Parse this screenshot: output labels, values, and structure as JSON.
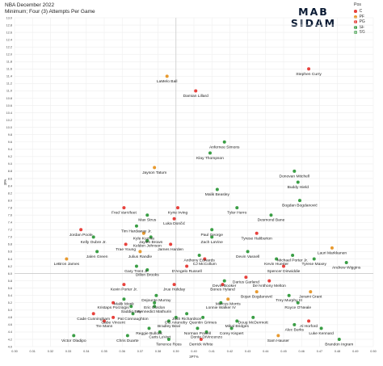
{
  "header": {
    "line1": "NBA December 2022",
    "line2": "Minimum; Four (3) Attempts Per Game"
  },
  "logo": {
    "line1": "MAB",
    "line2": "SIDAM"
  },
  "chart_data": {
    "type": "scatter",
    "xlabel": "3PT%",
    "ylabel": "3PA",
    "xlim": [
      0.3,
      0.5
    ],
    "ylim": [
      4.0,
      13.0
    ],
    "xticks": [
      "0.30",
      "0.31",
      "0.32",
      "0.33",
      "0.34",
      "0.35",
      "0.36",
      "0.37",
      "0.38",
      "0.39",
      "0.40",
      "0.41",
      "0.42",
      "0.43",
      "0.44",
      "0.45",
      "0.46",
      "0.47",
      "0.48",
      "0.49",
      "0.50"
    ],
    "yticks": [
      "4.0",
      "4.2",
      "4.4",
      "4.6",
      "4.8",
      "5.0",
      "5.2",
      "5.4",
      "5.6",
      "5.8",
      "6.0",
      "6.2",
      "6.4",
      "6.6",
      "6.8",
      "7.0",
      "7.2",
      "7.4",
      "7.6",
      "7.8",
      "8.0",
      "8.2",
      "8.4",
      "8.6",
      "8.8",
      "9.0",
      "9.2",
      "9.4",
      "9.6",
      "9.8",
      "10.0",
      "10.2",
      "10.4",
      "10.6",
      "10.8",
      "11.0",
      "11.2",
      "11.4",
      "11.6",
      "11.8",
      "12.0",
      "12.2",
      "12.4",
      "12.6",
      "12.8",
      "13.0"
    ],
    "reference_lines": {
      "x": 0.39,
      "y": 6.0
    },
    "legend": {
      "title": "Pos",
      "placement": "top-right",
      "entries": [
        {
          "label": "C",
          "color": "#e8413c"
        },
        {
          "label": "PF",
          "color": "#e89a2f"
        },
        {
          "label": "PG",
          "color": "#e8413c"
        },
        {
          "label": "SF",
          "color": "#3a9e45"
        },
        {
          "label": "SG",
          "color": "#3a9e45"
        }
      ]
    },
    "colors": {
      "red": "#e8413c",
      "orange": "#e89a2f",
      "green": "#3a9e45"
    },
    "points": [
      {
        "name": "Stephen Curry",
        "x": 0.464,
        "y": 11.6,
        "c": "red"
      },
      {
        "name": "LaMelo Ball",
        "x": 0.385,
        "y": 11.4,
        "c": "orange"
      },
      {
        "name": "Damian Lillard",
        "x": 0.401,
        "y": 11.0,
        "c": "red"
      },
      {
        "name": "Anfernee Simons",
        "x": 0.417,
        "y": 9.6,
        "c": "green"
      },
      {
        "name": "Klay Thompson",
        "x": 0.409,
        "y": 9.3,
        "c": "green"
      },
      {
        "name": "Jayson Tatum",
        "x": 0.378,
        "y": 8.9,
        "c": "orange"
      },
      {
        "name": "Donovan Mitchell",
        "x": 0.456,
        "y": 8.8,
        "c": "green"
      },
      {
        "name": "Buddy Hield",
        "x": 0.458,
        "y": 8.5,
        "c": "green"
      },
      {
        "name": "Malik Beasley",
        "x": 0.413,
        "y": 8.3,
        "c": "green"
      },
      {
        "name": "Bogdan Bogdanović",
        "x": 0.459,
        "y": 8.0,
        "c": "green"
      },
      {
        "name": "Fred VanVleet",
        "x": 0.361,
        "y": 7.8,
        "c": "red"
      },
      {
        "name": "Kyrie Irving",
        "x": 0.391,
        "y": 7.8,
        "c": "red"
      },
      {
        "name": "Tyler Herro",
        "x": 0.424,
        "y": 7.8,
        "c": "green"
      },
      {
        "name": "Desmond Bane",
        "x": 0.443,
        "y": 7.6,
        "c": "green"
      },
      {
        "name": "Max Strus",
        "x": 0.374,
        "y": 7.6,
        "c": "green"
      },
      {
        "name": "Luka Dončić",
        "x": 0.389,
        "y": 7.5,
        "c": "red"
      },
      {
        "name": "Tim Hardaway Jr.",
        "x": 0.368,
        "y": 7.3,
        "c": "green"
      },
      {
        "name": "Jordan Poole",
        "x": 0.337,
        "y": 7.2,
        "c": "red"
      },
      {
        "name": "Paul George",
        "x": 0.41,
        "y": 7.2,
        "c": "green"
      },
      {
        "name": "Tyrese Haliburton",
        "x": 0.435,
        "y": 7.1,
        "c": "red"
      },
      {
        "name": "Kyle Kuzma",
        "x": 0.372,
        "y": 7.1,
        "c": "orange"
      },
      {
        "name": "Kelly Oubre Jr.",
        "x": 0.344,
        "y": 7.0,
        "c": "green"
      },
      {
        "name": "Jaylen Brown",
        "x": 0.376,
        "y": 7.0,
        "c": "green"
      },
      {
        "name": "Zach LaVine",
        "x": 0.41,
        "y": 7.0,
        "c": "green"
      },
      {
        "name": "Keldon Johnson",
        "x": 0.374,
        "y": 6.9,
        "c": "green"
      },
      {
        "name": "Trae Young",
        "x": 0.362,
        "y": 6.8,
        "c": "red"
      },
      {
        "name": "James Harden",
        "x": 0.387,
        "y": 6.8,
        "c": "red"
      },
      {
        "name": "Lauri Markkanen",
        "x": 0.477,
        "y": 6.7,
        "c": "orange"
      },
      {
        "name": "Julius Randle",
        "x": 0.37,
        "y": 6.6,
        "c": "orange"
      },
      {
        "name": "Jalen Green",
        "x": 0.346,
        "y": 6.6,
        "c": "green"
      },
      {
        "name": "Devin Vassell",
        "x": 0.43,
        "y": 6.6,
        "c": "green"
      },
      {
        "name": "Michael Porter Jr.",
        "x": 0.455,
        "y": 6.5,
        "c": "green"
      },
      {
        "name": "Anthony Edwards",
        "x": 0.403,
        "y": 6.5,
        "c": "green"
      },
      {
        "name": "Tyrese Maxey",
        "x": 0.467,
        "y": 6.4,
        "c": "green"
      },
      {
        "name": "LeBron James",
        "x": 0.329,
        "y": 6.4,
        "c": "orange"
      },
      {
        "name": "CJ McCollum",
        "x": 0.406,
        "y": 6.4,
        "c": "red"
      },
      {
        "name": "Kevin Huerter",
        "x": 0.446,
        "y": 6.4,
        "c": "green"
      },
      {
        "name": "Andrew Wiggins",
        "x": 0.485,
        "y": 6.3,
        "c": "green"
      },
      {
        "name": "Spencer Dinwiddie",
        "x": 0.45,
        "y": 6.2,
        "c": "red"
      },
      {
        "name": "Gary Trent Jr.",
        "x": 0.368,
        "y": 6.2,
        "c": "green"
      },
      {
        "name": "D'Angelo Russell",
        "x": 0.396,
        "y": 6.2,
        "c": "red"
      },
      {
        "name": "Dillon Brooks",
        "x": 0.374,
        "y": 6.1,
        "c": "green"
      },
      {
        "name": "Darius Garland",
        "x": 0.429,
        "y": 5.9,
        "c": "red"
      },
      {
        "name": "Devin Booker",
        "x": 0.417,
        "y": 5.8,
        "c": "green"
      },
      {
        "name": "De'Anthony Melton",
        "x": 0.442,
        "y": 5.8,
        "c": "red"
      },
      {
        "name": "Kevin Porter Jr.",
        "x": 0.361,
        "y": 5.7,
        "c": "red"
      },
      {
        "name": "Jrue Holiday",
        "x": 0.389,
        "y": 5.7,
        "c": "red"
      },
      {
        "name": "Bones Hyland",
        "x": 0.416,
        "y": 5.7,
        "c": "red"
      },
      {
        "name": "Jerami Grant",
        "x": 0.465,
        "y": 5.5,
        "c": "orange"
      },
      {
        "name": "Bojan Bogdanović",
        "x": 0.435,
        "y": 5.5,
        "c": "orange"
      },
      {
        "name": "Trey Murphy III",
        "x": 0.453,
        "y": 5.4,
        "c": "green"
      },
      {
        "name": "Dejounte Murray",
        "x": 0.379,
        "y": 5.4,
        "c": "green"
      },
      {
        "name": "Malik Monk",
        "x": 0.361,
        "y": 5.3,
        "c": "green"
      },
      {
        "name": "Marcus Morris",
        "x": 0.419,
        "y": 5.3,
        "c": "orange"
      },
      {
        "name": "Kristaps Porziņģis",
        "x": 0.355,
        "y": 5.2,
        "c": "red"
      },
      {
        "name": "Eric Gordon",
        "x": 0.378,
        "y": 5.2,
        "c": "green"
      },
      {
        "name": "Lonnie Walker IV",
        "x": 0.415,
        "y": 5.2,
        "c": "green"
      },
      {
        "name": "Royce O'Neale",
        "x": 0.458,
        "y": 5.2,
        "c": "green"
      },
      {
        "name": "Saddiq Bey",
        "x": 0.365,
        "y": 5.1,
        "c": "green"
      },
      {
        "name": "Bennedict Mathurin",
        "x": 0.378,
        "y": 5.1,
        "c": "green"
      },
      {
        "name": "Cade Cunningham",
        "x": 0.344,
        "y": 4.9,
        "c": "red"
      },
      {
        "name": "Pat Connaughton",
        "x": 0.366,
        "y": 4.9,
        "c": "green"
      },
      {
        "name": "Josh Richardson",
        "x": 0.396,
        "y": 4.9,
        "c": "green"
      },
      {
        "name": "Gabe Vincent",
        "x": 0.355,
        "y": 4.8,
        "c": "red"
      },
      {
        "name": "OG Anunoby",
        "x": 0.39,
        "y": 4.8,
        "c": "green"
      },
      {
        "name": "Quentin Grimes",
        "x": 0.405,
        "y": 4.8,
        "c": "green"
      },
      {
        "name": "Doug McDermott",
        "x": 0.433,
        "y": 4.8,
        "c": "green"
      },
      {
        "name": "Al Horford",
        "x": 0.464,
        "y": 4.7,
        "c": "red"
      },
      {
        "name": "Tre Mann",
        "x": 0.35,
        "y": 4.7,
        "c": "red"
      },
      {
        "name": "Bradley Beal",
        "x": 0.386,
        "y": 4.7,
        "c": "green"
      },
      {
        "name": "Mikal Bridges",
        "x": 0.424,
        "y": 4.7,
        "c": "green"
      },
      {
        "name": "Alec Burks",
        "x": 0.456,
        "y": 4.6,
        "c": "green"
      },
      {
        "name": "Luke Kennard",
        "x": 0.471,
        "y": 4.5,
        "c": "green"
      },
      {
        "name": "Reggie Bullock",
        "x": 0.375,
        "y": 4.5,
        "c": "green"
      },
      {
        "name": "Norman Powell",
        "x": 0.402,
        "y": 4.5,
        "c": "green"
      },
      {
        "name": "Corey Kispert",
        "x": 0.421,
        "y": 4.5,
        "c": "green"
      },
      {
        "name": "Caris LeVert",
        "x": 0.381,
        "y": 4.4,
        "c": "green"
      },
      {
        "name": "Donte DiVincenzo",
        "x": 0.407,
        "y": 4.4,
        "c": "green"
      },
      {
        "name": "Victor Oladipo",
        "x": 0.333,
        "y": 4.3,
        "c": "green"
      },
      {
        "name": "Chris Duarte",
        "x": 0.363,
        "y": 4.3,
        "c": "green"
      },
      {
        "name": "Sam Hauser",
        "x": 0.447,
        "y": 4.3,
        "c": "orange"
      },
      {
        "name": "Brandon Ingram",
        "x": 0.481,
        "y": 4.2,
        "c": "green"
      },
      {
        "name": "Terrence Ross",
        "x": 0.386,
        "y": 4.2,
        "c": "green"
      },
      {
        "name": "Derrick White",
        "x": 0.404,
        "y": 4.2,
        "c": "red"
      }
    ]
  }
}
